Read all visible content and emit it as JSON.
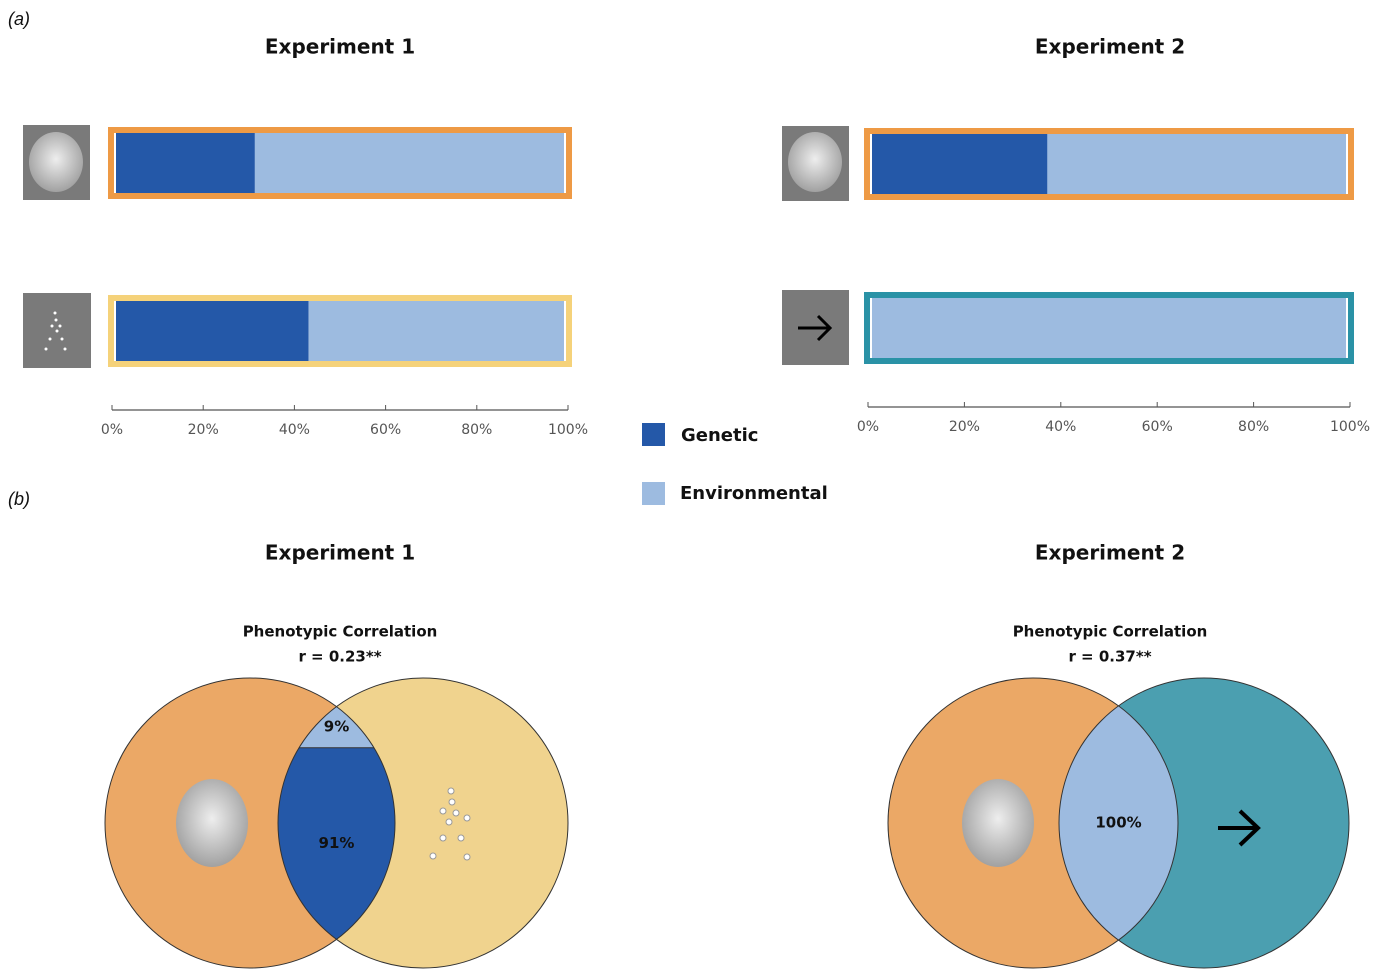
{
  "chart_data": [
    {
      "type": "bar",
      "label": "(a)",
      "orientation": "horizontal",
      "stacked": true,
      "panels": [
        {
          "title": "Experiment 1"
        },
        {
          "title": "Experiment 2"
        }
      ],
      "row_colors": [
        "#ee9a45",
        "#f5d27a",
        "#ee9a45",
        "#2a92a6"
      ],
      "series": [
        {
          "name": "Genetic",
          "color": "#2458a8",
          "values": [
            31,
            43,
            37,
            0
          ]
        },
        {
          "name": "Environmental",
          "color": "#9dbbe0",
          "values": [
            69,
            57,
            63,
            100
          ]
        }
      ],
      "xlim": [
        0,
        100
      ],
      "xticks": [
        {
          "value": 0,
          "label": "0%"
        },
        {
          "value": 20,
          "label": "20%"
        },
        {
          "value": 40,
          "label": "40%"
        },
        {
          "value": 60,
          "label": "60%"
        },
        {
          "value": 80,
          "label": "80%"
        },
        {
          "value": 100,
          "label": "100%"
        }
      ]
    },
    {
      "type": "venn",
      "label": "(b)",
      "panels": [
        {
          "title": "Experiment 1",
          "subtitle": "Phenotypic Correlation",
          "annotation": "r = 0.23**",
          "colors": [
            "#eba866",
            "#f0d38e"
          ],
          "values": [
            91,
            9
          ],
          "value_labels": [
            "91%",
            "9%"
          ]
        },
        {
          "title": "Experiment 2",
          "subtitle": "Phenotypic Correlation",
          "annotation": "r = 0.37**",
          "colors": [
            "#eba866",
            "#4b9fb0"
          ],
          "values": [
            0,
            100
          ],
          "value_labels": [
            null,
            "100%"
          ]
        }
      ]
    }
  ]
}
